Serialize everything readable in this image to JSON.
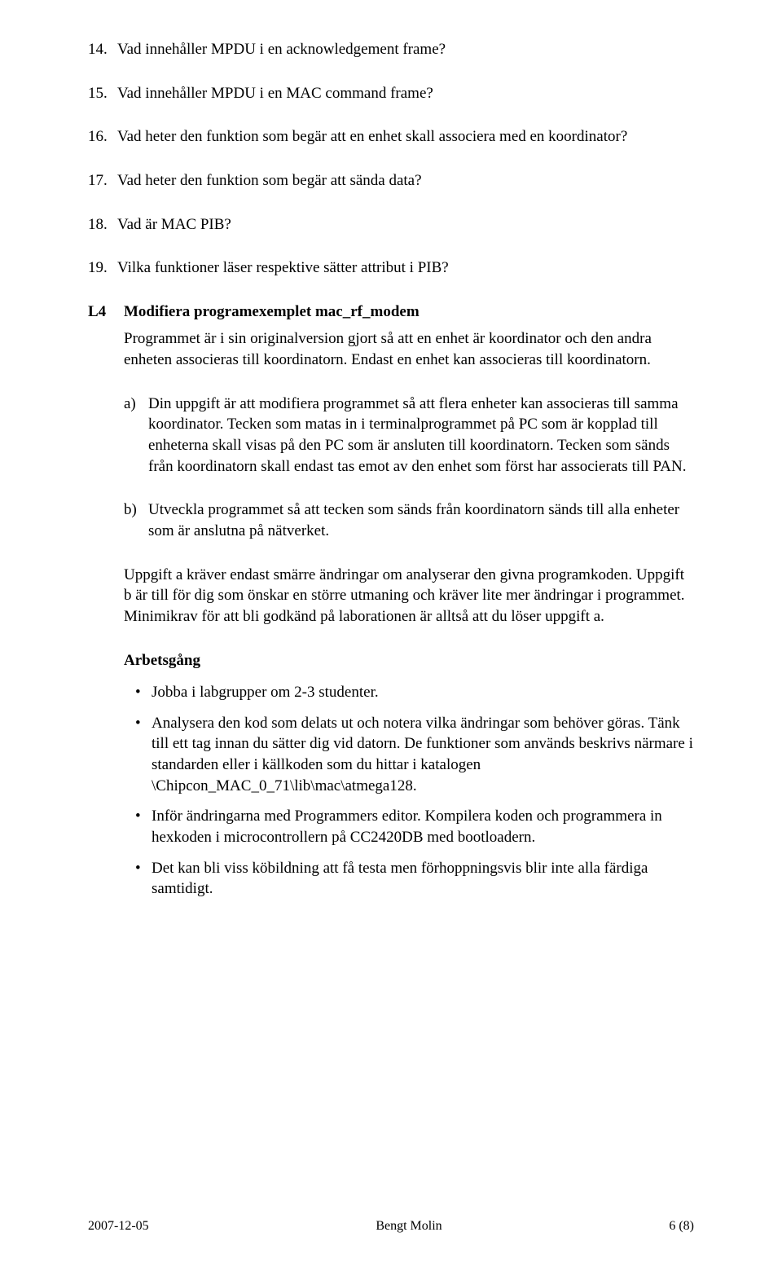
{
  "questions": [
    {
      "num": "14.",
      "text": "Vad innehåller MPDU i en acknowledgement frame?"
    },
    {
      "num": "15.",
      "text": "Vad innehåller MPDU i en MAC command frame?"
    },
    {
      "num": "16.",
      "text": "Vad heter den funktion som begär att en enhet skall associera med en koordinator?"
    },
    {
      "num": "17.",
      "text": "Vad heter den funktion som begär att sända data?"
    },
    {
      "num": "18.",
      "text": "Vad är MAC PIB?"
    },
    {
      "num": "19.",
      "text": "Vilka funktioner läser respektive sätter attribut i PIB?"
    }
  ],
  "section": {
    "label": "L4",
    "title": "Modifiera programexemplet mac_rf_modem",
    "intro": "Programmet är i sin originalversion gjort så att en enhet är koordinator och den andra enheten associeras till koordinatorn. Endast en enhet kan associeras till koordinatorn.",
    "subs": [
      {
        "num": "a)",
        "text": "Din uppgift är att modifiera programmet så att flera enheter kan associeras till samma koordinator. Tecken som matas in i terminalprogrammet på PC som är kopplad till enheterna skall visas på den PC som är ansluten till koordinatorn. Tecken som sänds från koordinatorn skall endast tas emot av den enhet som först har associerats till PAN."
      },
      {
        "num": "b)",
        "text": "Utveckla programmet så att tecken som sänds från koordinatorn sänds till alla enheter som är anslutna på nätverket."
      }
    ],
    "note": "Uppgift a kräver endast smärre ändringar om analyserar den givna programkoden. Uppgift b är till för dig som önskar en större utmaning och kräver lite mer ändringar i programmet. Minimikrav för att bli godkänd på laborationen är alltså att du löser uppgift a.",
    "heading": "Arbetsgång",
    "bullets": [
      "Jobba i labgrupper om 2-3 studenter.",
      "Analysera den kod som delats ut och notera vilka ändringar som behöver göras. Tänk till ett tag innan du sätter dig vid datorn. De funktioner som används beskrivs närmare i standarden eller i källkoden som du hittar i  katalogen \\Chipcon_MAC_0_71\\lib\\mac\\atmega128.",
      "Inför ändringarna med Programmers editor. Kompilera koden och programmera in hexkoden i microcontrollern på CC2420DB med bootloadern.",
      "Det kan bli viss köbildning att få testa men förhoppningsvis blir inte alla färdiga samtidigt."
    ]
  },
  "footer": {
    "date": "2007-12-05",
    "author": "Bengt Molin",
    "page": "6 (8)"
  },
  "bullet_glyph": "•"
}
